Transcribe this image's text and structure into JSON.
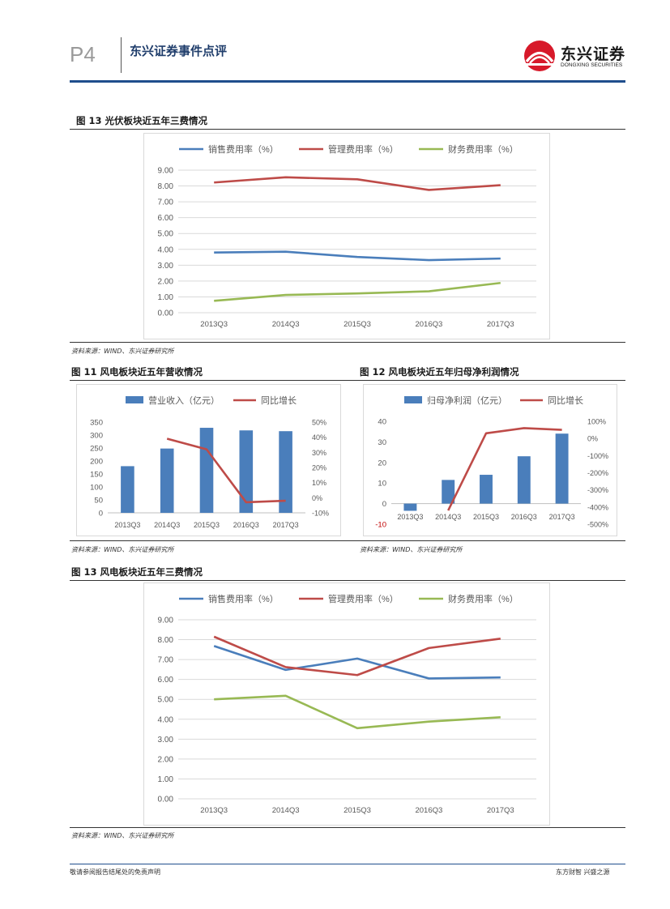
{
  "header": {
    "page_number": "P4",
    "report_type": "东兴证券事件点评",
    "logo_cn": "东兴证券",
    "logo_en": "DONGXING SECURITIES"
  },
  "figures": {
    "fig1": {
      "title": "图 13 光伏板块近五年三费情况",
      "source": "资料来源：WIND、东兴证券研究所"
    },
    "fig2": {
      "title": "图 11 风电板块近五年营收情况",
      "source": "资料来源：WIND、东兴证券研究所"
    },
    "fig3": {
      "title": "图 12 风电板块近五年归母净利润情况",
      "source": "资料来源：WIND、东兴证券研究所"
    },
    "fig4": {
      "title": "图 13 风电板块近五年三费情况",
      "source": "资料来源：WIND、东兴证券研究所"
    }
  },
  "footer": {
    "left": "敬请参阅报告结尾处的免责声明",
    "right": "东方财智 兴盛之源"
  },
  "colors": {
    "blue": "#4a7ebb",
    "red": "#be4b48",
    "green": "#98b954",
    "grid": "#d9d9d9",
    "header_blue": "#1f4e8c",
    "logo_red": "#d7192a"
  },
  "chart_data": [
    {
      "id": "pv-expense",
      "type": "line",
      "title": "图 13 光伏板块近五年三费情况",
      "categories": [
        "2013Q3",
        "2014Q3",
        "2015Q3",
        "2016Q3",
        "2017Q3"
      ],
      "series": [
        {
          "name": "销售费用率（%）",
          "values": [
            3.8,
            3.85,
            3.52,
            3.32,
            3.42
          ]
        },
        {
          "name": "管理费用率（%）",
          "values": [
            8.22,
            8.55,
            8.42,
            7.75,
            8.05
          ]
        },
        {
          "name": "财务费用率（%）",
          "values": [
            0.75,
            1.12,
            1.22,
            1.35,
            1.88
          ]
        }
      ],
      "yticks": [
        "0.00",
        "1.00",
        "2.00",
        "3.00",
        "4.00",
        "5.00",
        "6.00",
        "7.00",
        "8.00",
        "9.00"
      ],
      "ylim": [
        0,
        9
      ],
      "legend": "top"
    },
    {
      "id": "wind-revenue",
      "type": "bar+line",
      "title": "图 11 风电板块近五年营收情况",
      "categories": [
        "2013Q3",
        "2014Q3",
        "2015Q3",
        "2016Q3",
        "2017Q3"
      ],
      "series": [
        {
          "name": "营业收入（亿元）",
          "type": "bar",
          "axis": "left",
          "values": [
            180,
            248,
            328,
            318,
            315
          ]
        },
        {
          "name": "同比增长",
          "type": "line",
          "axis": "right",
          "values": [
            null,
            39,
            32,
            -3,
            -2
          ]
        }
      ],
      "yticks_left": [
        "0",
        "50",
        "100",
        "150",
        "200",
        "250",
        "300",
        "350"
      ],
      "yticks_right": [
        "-10%",
        "0%",
        "10%",
        "20%",
        "30%",
        "40%",
        "50%"
      ],
      "ylim_left": [
        0,
        350
      ],
      "ylim_right": [
        -10,
        50
      ],
      "legend": "top"
    },
    {
      "id": "wind-profit",
      "type": "bar+line",
      "title": "图 12 风电板块近五年归母净利润情况",
      "categories": [
        "2013Q3",
        "2014Q3",
        "2015Q3",
        "2016Q3",
        "2017Q3"
      ],
      "series": [
        {
          "name": "归母净利润（亿元）",
          "type": "bar",
          "axis": "left",
          "values": [
            -3.5,
            11.5,
            14,
            23,
            34
          ]
        },
        {
          "name": "同比增长",
          "type": "line",
          "axis": "right",
          "values": [
            null,
            -420,
            30,
            60,
            50
          ]
        }
      ],
      "yticks_left": [
        "-10",
        "0",
        "10",
        "20",
        "30",
        "40"
      ],
      "yticks_right": [
        "-500%",
        "-400%",
        "-300%",
        "-200%",
        "-100%",
        "0%",
        "100%"
      ],
      "ylim_left": [
        -10,
        40
      ],
      "ylim_right": [
        -500,
        100
      ],
      "legend": "top"
    },
    {
      "id": "wind-expense",
      "type": "line",
      "title": "图 13 风电板块近五年三费情况",
      "categories": [
        "2013Q3",
        "2014Q3",
        "2015Q3",
        "2016Q3",
        "2017Q3"
      ],
      "series": [
        {
          "name": "销售费用率（%）",
          "values": [
            7.68,
            6.48,
            7.05,
            6.05,
            6.1
          ]
        },
        {
          "name": "管理费用率（%）",
          "values": [
            8.15,
            6.62,
            6.22,
            7.58,
            8.05
          ]
        },
        {
          "name": "财务费用率（%）",
          "values": [
            5.0,
            5.18,
            3.55,
            3.88,
            4.1
          ]
        }
      ],
      "yticks": [
        "0.00",
        "1.00",
        "2.00",
        "3.00",
        "4.00",
        "5.00",
        "6.00",
        "7.00",
        "8.00",
        "9.00"
      ],
      "ylim": [
        0,
        9
      ],
      "legend": "top"
    }
  ]
}
